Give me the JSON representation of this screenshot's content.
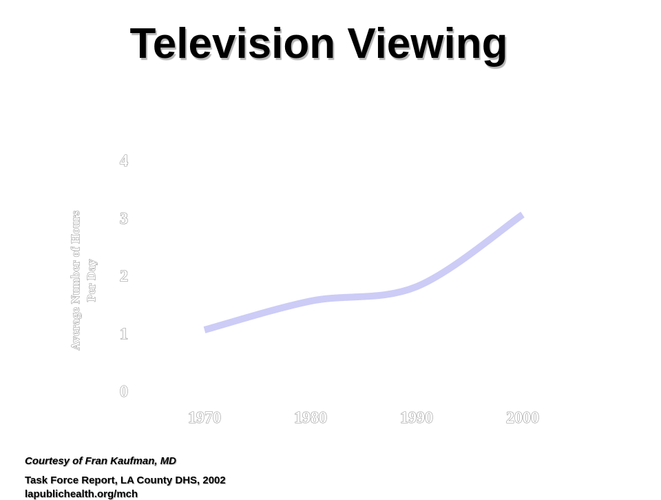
{
  "slide": {
    "title": "Television Viewing",
    "credit": "Courtesy of Fran Kaufman, MD",
    "source": "Task Force Report, LA County DHS, 2002",
    "source_url": "lapublichealth.org/mch"
  },
  "chart_data": {
    "type": "line",
    "title": "Television Viewing",
    "xlabel": "",
    "ylabel_lines": [
      "Average Number of Hours",
      "Per Day"
    ],
    "categories": [
      "1970",
      "1980",
      "1990",
      "2000"
    ],
    "yticks": [
      "0",
      "1",
      "2",
      "3",
      "4"
    ],
    "ylim": [
      0,
      4
    ],
    "series": [
      {
        "values": [
          1.05,
          1.55,
          1.8,
          3.05
        ],
        "color": "#ccccf7"
      }
    ],
    "grid": false,
    "legend": "none"
  }
}
